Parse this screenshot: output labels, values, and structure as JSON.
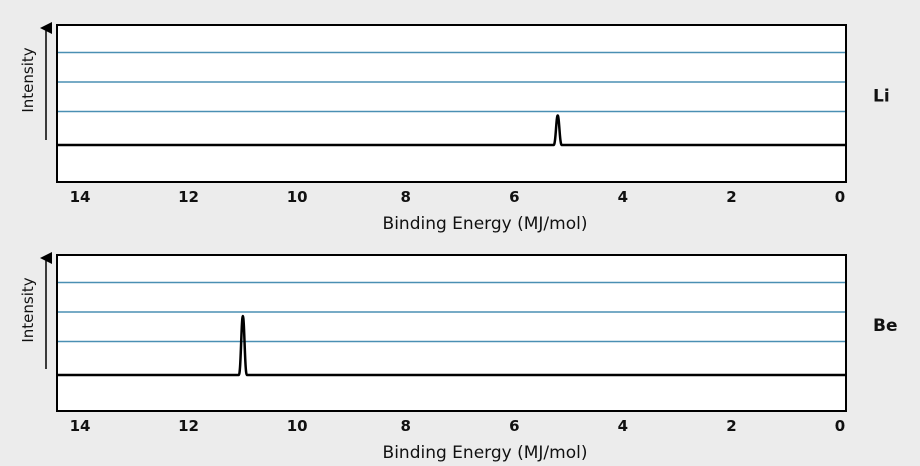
{
  "colors": {
    "background": "#ececec",
    "plot_background": "#ffffff",
    "gridline": "#4a8fb3",
    "trace": "#000000"
  },
  "chart_data": [
    {
      "type": "line",
      "series_label": "Li",
      "xlabel": "Binding Energy (MJ/mol)",
      "ylabel": "Intensity",
      "xlim": [
        14,
        0
      ],
      "x_reversed": true,
      "x_ticks": [
        14,
        12,
        10,
        8,
        6,
        4,
        2,
        0
      ],
      "y_gridlines": 3,
      "peaks": [
        {
          "binding_energy": 5.2,
          "relative_intensity": 1
        }
      ]
    },
    {
      "type": "line",
      "series_label": "Be",
      "xlabel": "Binding Energy (MJ/mol)",
      "ylabel": "Intensity",
      "xlim": [
        14,
        0
      ],
      "x_reversed": true,
      "x_ticks": [
        14,
        12,
        10,
        8,
        6,
        4,
        2,
        0
      ],
      "y_gridlines": 3,
      "peaks": [
        {
          "binding_energy": 11.0,
          "relative_intensity": 2
        }
      ]
    }
  ]
}
